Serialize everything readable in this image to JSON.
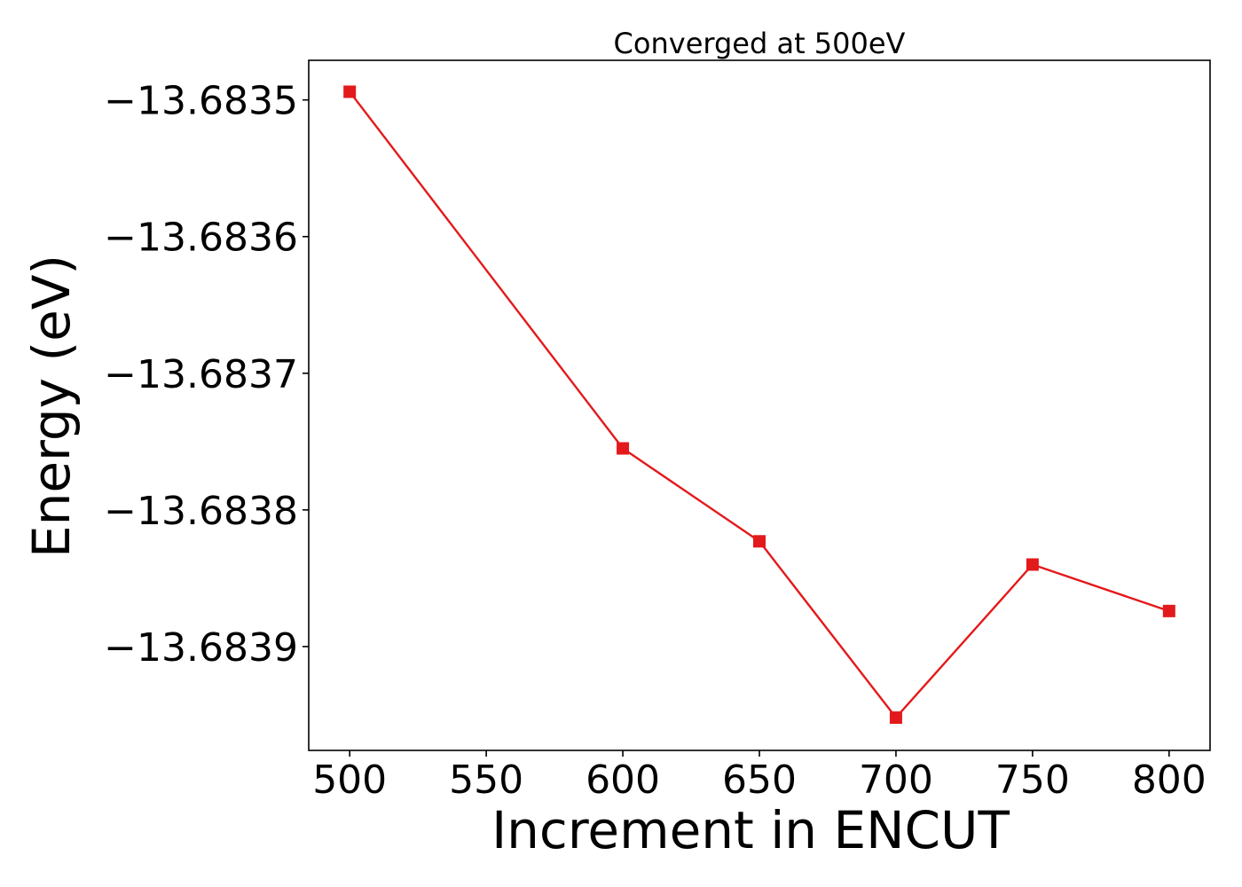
{
  "chart_data": {
    "type": "line",
    "title": "Converged at 500eV",
    "xlabel": "Increment in ENCUT",
    "ylabel": "Energy (eV)",
    "x": [
      500,
      600,
      650,
      700,
      750,
      800
    ],
    "series": [
      {
        "values": [
          -13.683494,
          -13.683755,
          -13.683823,
          -13.683952,
          -13.68384,
          -13.683874
        ],
        "color": "#e31a1c",
        "marker": "square"
      }
    ],
    "xlim": [
      485,
      815
    ],
    "ylim": [
      -13.683976,
      -13.683471
    ],
    "xticks": [
      500,
      550,
      600,
      650,
      700,
      750,
      800
    ],
    "xtick_labels": [
      "500",
      "550",
      "600",
      "650",
      "700",
      "750",
      "800"
    ],
    "yticks": [
      -13.6835,
      -13.6836,
      -13.6837,
      -13.6838,
      -13.6839
    ],
    "ytick_labels": [
      "−13.6835",
      "−13.6836",
      "−13.6837",
      "−13.6838",
      "−13.6839"
    ],
    "grid": false,
    "legend": "none"
  }
}
